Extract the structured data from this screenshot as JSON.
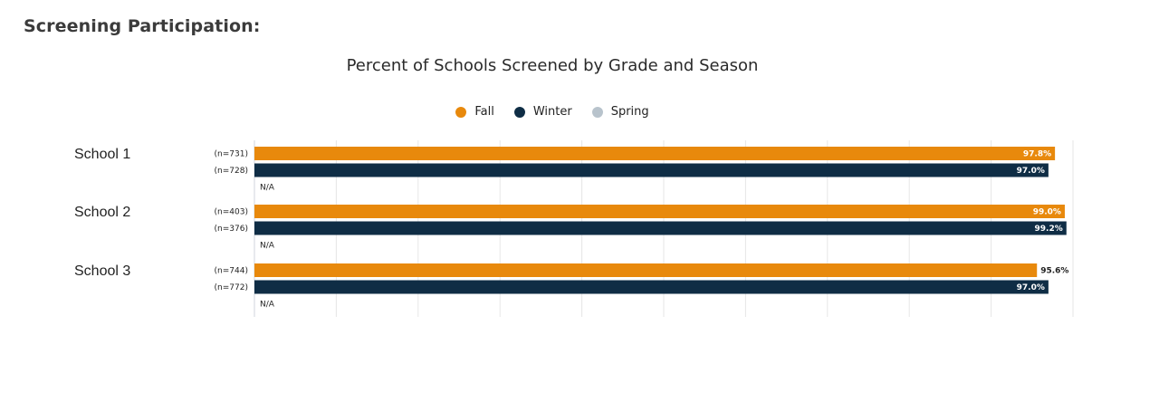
{
  "heading": "Screening Participation:",
  "chart_data": {
    "type": "bar",
    "orientation": "horizontal",
    "title": "Percent of Schools Screened by Grade and Season",
    "xlabel": "",
    "ylabel": "",
    "xlim": [
      0,
      100
    ],
    "grid": true,
    "legend_position": "top-center",
    "categories": [
      "School 1",
      "School 2",
      "School 3"
    ],
    "series": [
      {
        "name": "Fall",
        "color": "#e8890c",
        "values": [
          97.8,
          99.0,
          95.6
        ],
        "value_labels": [
          "97.8%",
          "99.0%",
          "95.6%"
        ],
        "n_labels": [
          "(n=731)",
          "(n=403)",
          "(n=744)"
        ]
      },
      {
        "name": "Winter",
        "color": "#0f2d45",
        "values": [
          97.0,
          99.2,
          97.0
        ],
        "value_labels": [
          "97.0%",
          "99.2%",
          "97.0%"
        ],
        "n_labels": [
          "(n=728)",
          "(n=376)",
          "(n=772)"
        ]
      },
      {
        "name": "Spring",
        "color": "#b8c3cc",
        "values": [
          null,
          null,
          null
        ],
        "value_labels": [
          "N/A",
          "N/A",
          "N/A"
        ],
        "n_labels": [
          "",
          "",
          ""
        ]
      }
    ]
  }
}
